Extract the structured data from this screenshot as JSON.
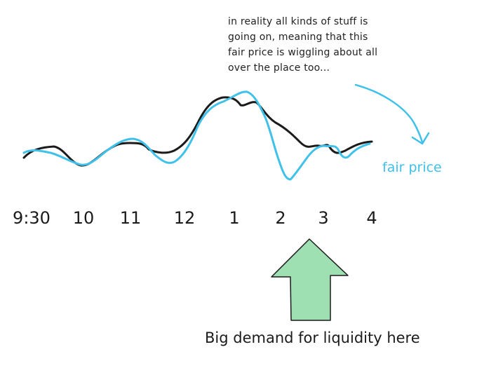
{
  "annotation": {
    "lines": [
      "in reality all kinds of stuff is",
      "going on, meaning that this",
      "fair price is wiggling about all",
      "over the place too..."
    ]
  },
  "series_label": "fair price",
  "caption": "Big demand for liquidity here",
  "colors": {
    "black_line": "#1b1b1b",
    "fair_price": "#3fc1ea",
    "arrow_fill": "#9fe0b3",
    "arrow_stroke": "#1b1b1b"
  },
  "chart_data": {
    "type": "line",
    "x_tick_labels": [
      "9:30",
      "10",
      "11",
      "12",
      "1",
      "2",
      "3",
      "4"
    ],
    "series": [
      {
        "name": "",
        "color": "#1b1b1b"
      },
      {
        "name": "fair price",
        "color": "#3fc1ea"
      }
    ]
  }
}
